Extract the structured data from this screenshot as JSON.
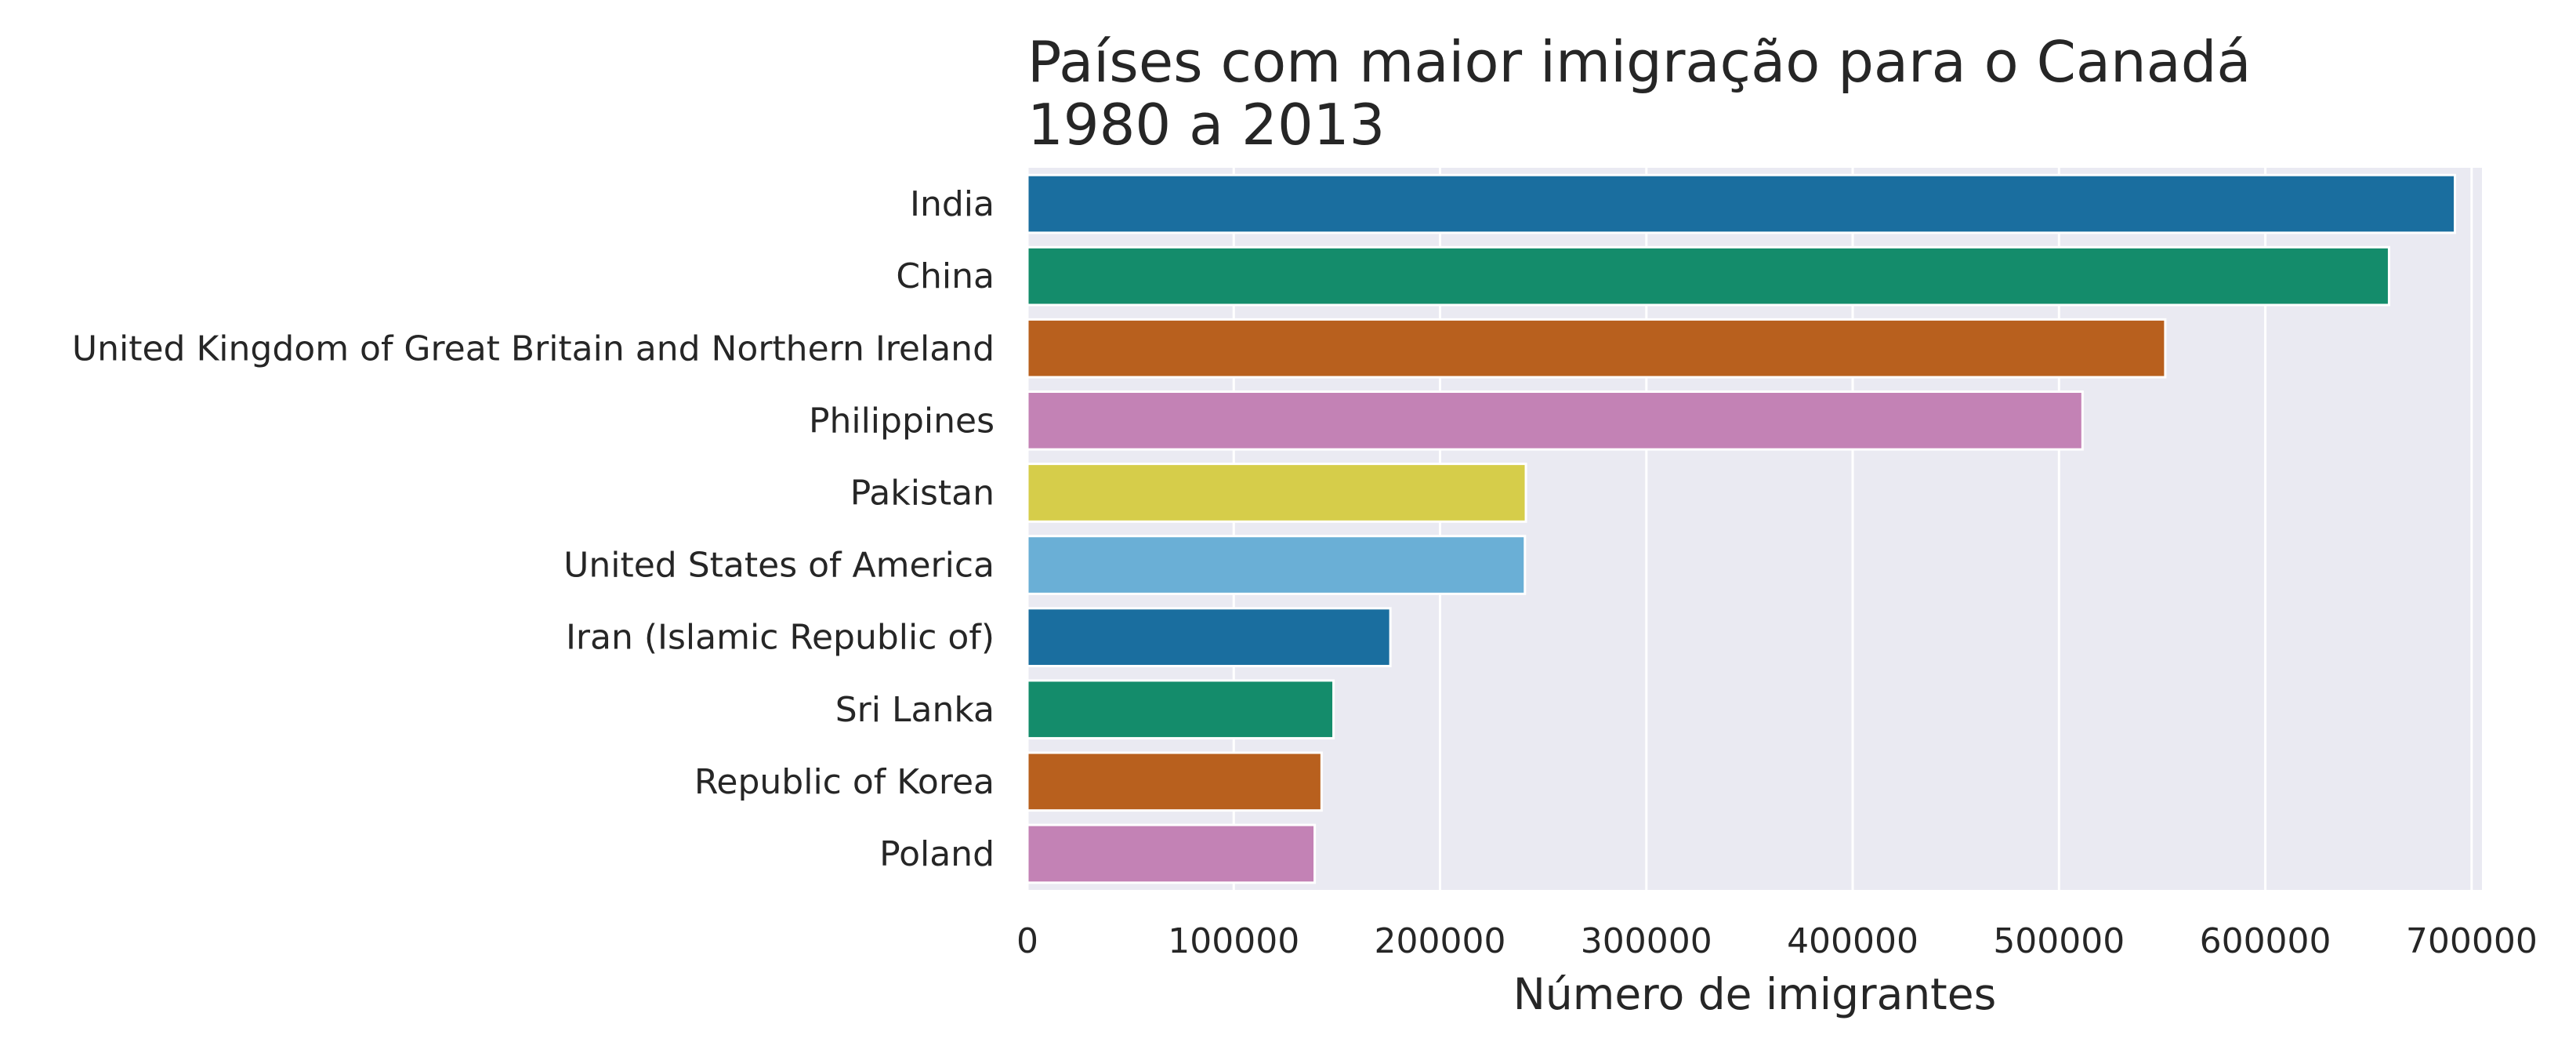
{
  "chart_data": {
    "type": "bar",
    "orientation": "horizontal",
    "title_line1": "Países com maior imigração para o Canadá",
    "title_line2": "1980 a 2013",
    "xlabel": "Número de imigrantes",
    "ylabel": "",
    "xlim": [
      0,
      705000
    ],
    "xticks": [
      0,
      100000,
      200000,
      300000,
      400000,
      500000,
      600000,
      700000
    ],
    "xtick_labels": [
      "0",
      "100000",
      "200000",
      "300000",
      "400000",
      "500000",
      "600000",
      "700000"
    ],
    "grid": true,
    "background": "#eaeaf2",
    "categories": [
      "India",
      "China",
      "United Kingdom of Great Britain and Northern Ireland",
      "Philippines",
      "Pakistan",
      "United States of America",
      "Iran (Islamic Republic of)",
      "Sri Lanka",
      "Republic of Korea",
      "Poland"
    ],
    "values": [
      691904,
      659962,
      551500,
      511391,
      241600,
      241122,
      175923,
      148358,
      142581,
      139241
    ],
    "colors": [
      "#1a6e9f",
      "#148c6b",
      "#b8601e",
      "#c382b5",
      "#d6cd4a",
      "#6aafd6",
      "#1a6e9f",
      "#148c6b",
      "#b8601e",
      "#c382b5"
    ]
  }
}
